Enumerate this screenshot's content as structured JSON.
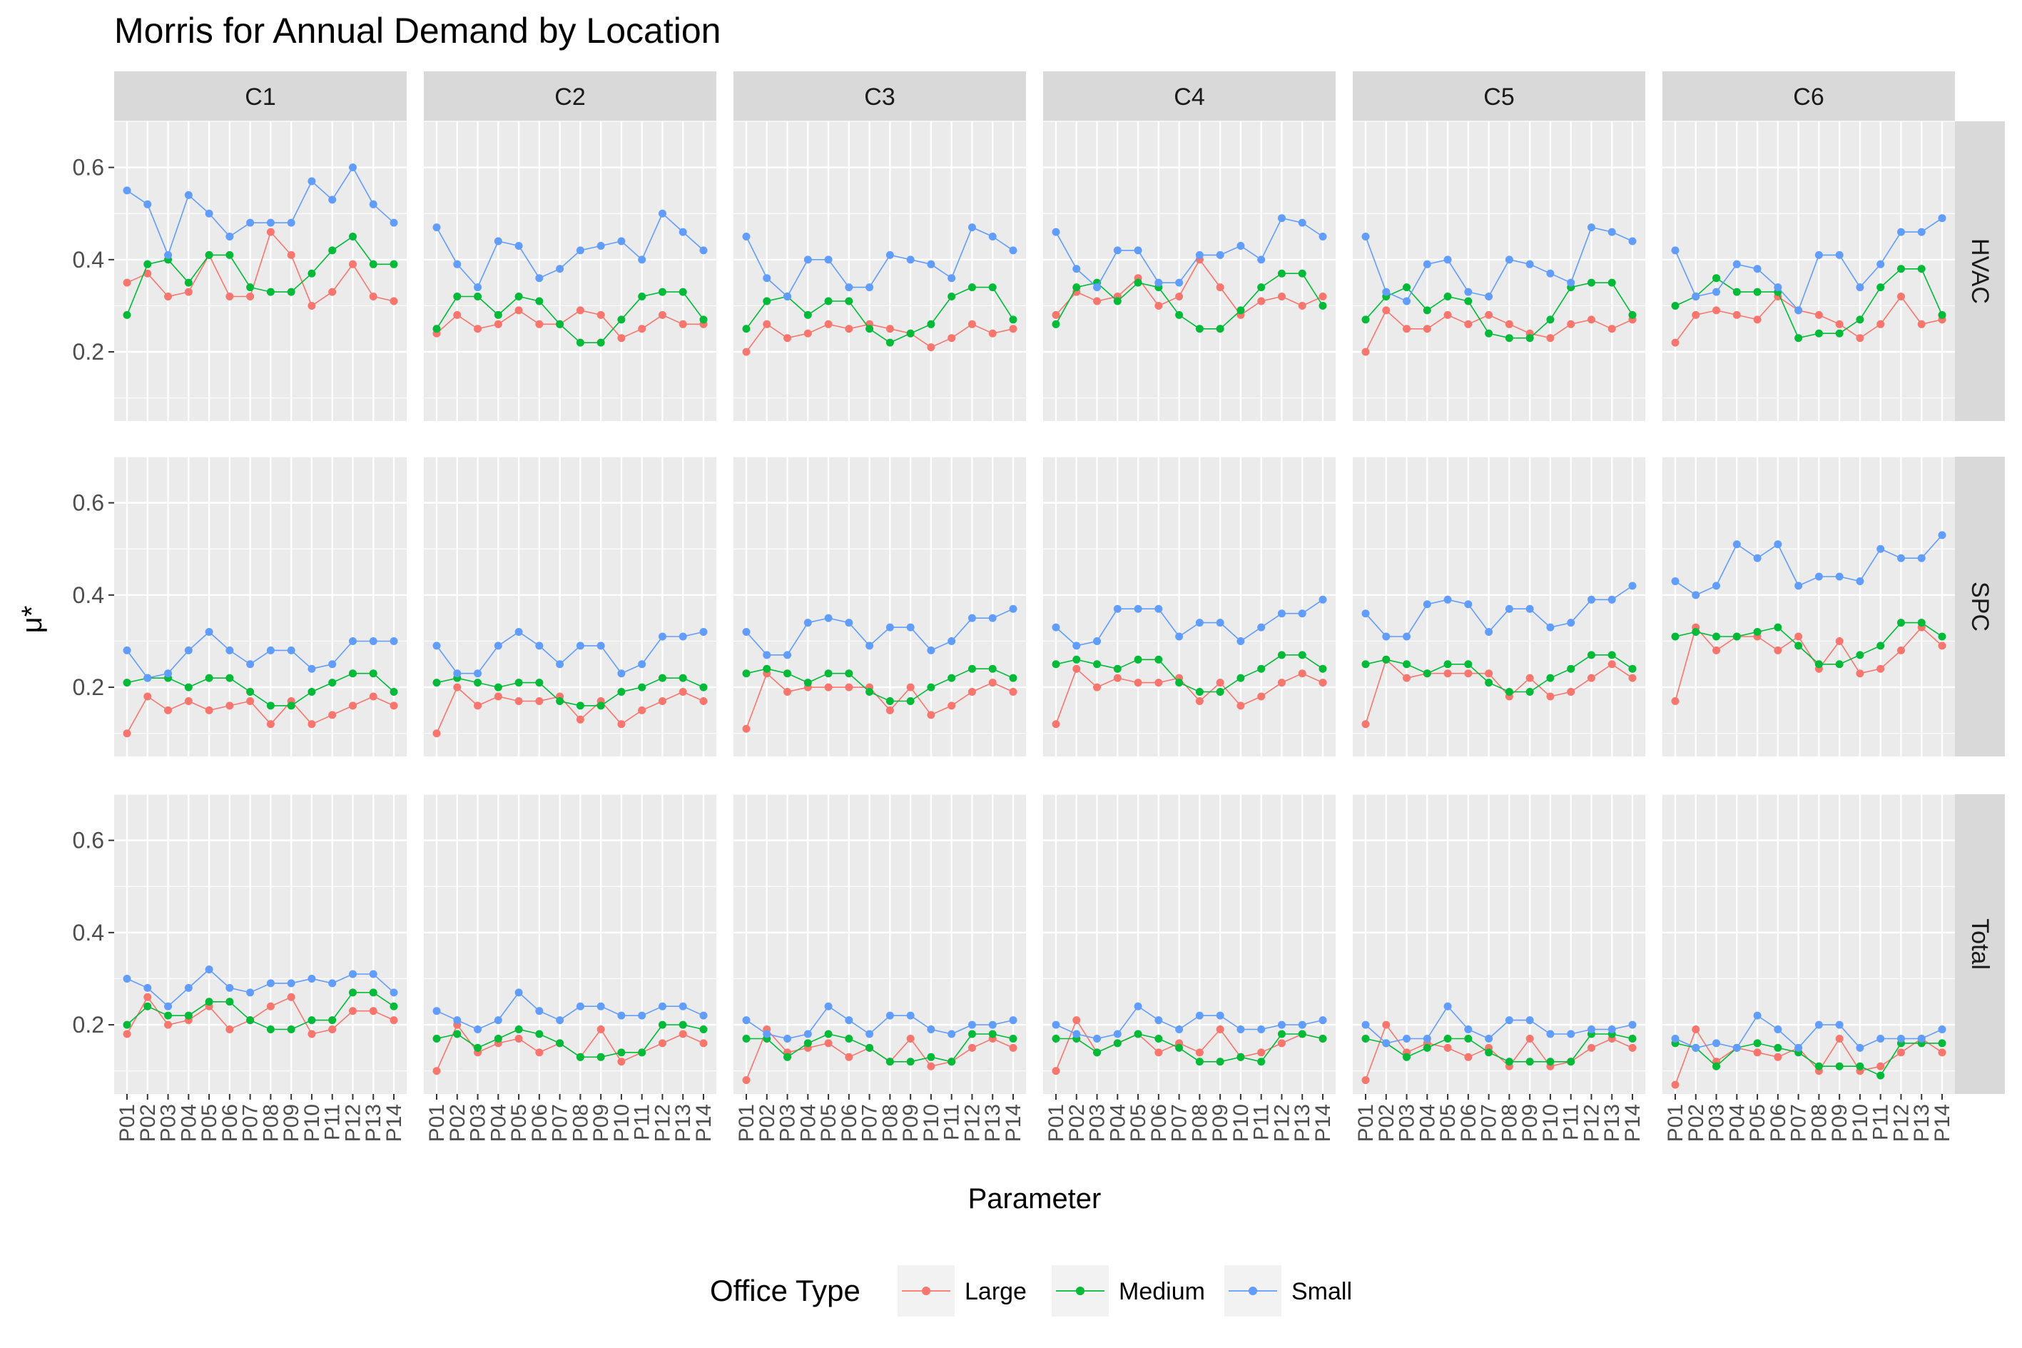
{
  "chart_data": {
    "type": "line",
    "title": "Morris for Annual Demand by Location",
    "xlabel": "Parameter",
    "ylabel": "μ*",
    "ylim": [
      0.05,
      0.7
    ],
    "yticks": [
      0.2,
      0.4,
      0.6
    ],
    "grid": true,
    "legend": {
      "title": "Office Type",
      "position": "bottom",
      "entries": [
        "Large",
        "Medium",
        "Small"
      ]
    },
    "series_colors": {
      "Large": "#F8766D",
      "Medium": "#00BA38",
      "Small": "#619CFF"
    },
    "categories": [
      "P01",
      "P02",
      "P03",
      "P04",
      "P05",
      "P06",
      "P07",
      "P08",
      "P09",
      "P10",
      "P11",
      "P12",
      "P13",
      "P14"
    ],
    "columns": [
      "C1",
      "C2",
      "C3",
      "C4",
      "C5",
      "C6"
    ],
    "rows": [
      "HVAC",
      "SPC",
      "Total"
    ],
    "panels": {
      "HVAC": {
        "C1": {
          "Large": [
            0.35,
            0.37,
            0.32,
            0.33,
            0.41,
            0.32,
            0.32,
            0.46,
            0.41,
            0.3,
            0.33,
            0.39,
            0.32,
            0.31
          ],
          "Medium": [
            0.28,
            0.39,
            0.4,
            0.35,
            0.41,
            0.41,
            0.34,
            0.33,
            0.33,
            0.37,
            0.42,
            0.45,
            0.39,
            0.39
          ],
          "Small": [
            0.55,
            0.52,
            0.41,
            0.54,
            0.5,
            0.45,
            0.48,
            0.48,
            0.48,
            0.57,
            0.53,
            0.6,
            0.52,
            0.48
          ]
        },
        "C2": {
          "Large": [
            0.24,
            0.28,
            0.25,
            0.26,
            0.29,
            0.26,
            0.26,
            0.29,
            0.28,
            0.23,
            0.25,
            0.28,
            0.26,
            0.26
          ],
          "Medium": [
            0.25,
            0.32,
            0.32,
            0.28,
            0.32,
            0.31,
            0.26,
            0.22,
            0.22,
            0.27,
            0.32,
            0.33,
            0.33,
            0.27
          ],
          "Small": [
            0.47,
            0.39,
            0.34,
            0.44,
            0.43,
            0.36,
            0.38,
            0.42,
            0.43,
            0.44,
            0.4,
            0.5,
            0.46,
            0.42
          ]
        },
        "C3": {
          "Large": [
            0.2,
            0.26,
            0.23,
            0.24,
            0.26,
            0.25,
            0.26,
            0.25,
            0.24,
            0.21,
            0.23,
            0.26,
            0.24,
            0.25
          ],
          "Medium": [
            0.25,
            0.31,
            0.32,
            0.28,
            0.31,
            0.31,
            0.25,
            0.22,
            0.24,
            0.26,
            0.32,
            0.34,
            0.34,
            0.27
          ],
          "Small": [
            0.45,
            0.36,
            0.32,
            0.4,
            0.4,
            0.34,
            0.34,
            0.41,
            0.4,
            0.39,
            0.36,
            0.47,
            0.45,
            0.42
          ]
        },
        "C4": {
          "Large": [
            0.28,
            0.33,
            0.31,
            0.32,
            0.36,
            0.3,
            0.32,
            0.4,
            0.34,
            0.28,
            0.31,
            0.32,
            0.3,
            0.32
          ],
          "Medium": [
            0.26,
            0.34,
            0.35,
            0.31,
            0.35,
            0.34,
            0.28,
            0.25,
            0.25,
            0.29,
            0.34,
            0.37,
            0.37,
            0.3
          ],
          "Small": [
            0.46,
            0.38,
            0.34,
            0.42,
            0.42,
            0.35,
            0.35,
            0.41,
            0.41,
            0.43,
            0.4,
            0.49,
            0.48,
            0.45
          ]
        },
        "C5": {
          "Large": [
            0.2,
            0.29,
            0.25,
            0.25,
            0.28,
            0.26,
            0.28,
            0.26,
            0.24,
            0.23,
            0.26,
            0.27,
            0.25,
            0.27
          ],
          "Medium": [
            0.27,
            0.32,
            0.34,
            0.29,
            0.32,
            0.31,
            0.24,
            0.23,
            0.23,
            0.27,
            0.34,
            0.35,
            0.35,
            0.28
          ],
          "Small": [
            0.45,
            0.33,
            0.31,
            0.39,
            0.4,
            0.33,
            0.32,
            0.4,
            0.39,
            0.37,
            0.35,
            0.47,
            0.46,
            0.44
          ]
        },
        "C6": {
          "Large": [
            0.22,
            0.28,
            0.29,
            0.28,
            0.27,
            0.32,
            0.29,
            0.28,
            0.26,
            0.23,
            0.26,
            0.32,
            0.26,
            0.27
          ],
          "Medium": [
            0.3,
            0.32,
            0.36,
            0.33,
            0.33,
            0.33,
            0.23,
            0.24,
            0.24,
            0.27,
            0.34,
            0.38,
            0.38,
            0.28
          ],
          "Small": [
            0.42,
            0.32,
            0.33,
            0.39,
            0.38,
            0.34,
            0.29,
            0.41,
            0.41,
            0.34,
            0.39,
            0.46,
            0.46,
            0.49
          ]
        }
      },
      "SPC": {
        "C1": {
          "Large": [
            0.1,
            0.18,
            0.15,
            0.17,
            0.15,
            0.16,
            0.17,
            0.12,
            0.17,
            0.12,
            0.14,
            0.16,
            0.18,
            0.16
          ],
          "Medium": [
            0.21,
            0.22,
            0.22,
            0.2,
            0.22,
            0.22,
            0.19,
            0.16,
            0.16,
            0.19,
            0.21,
            0.23,
            0.23,
            0.19
          ],
          "Small": [
            0.28,
            0.22,
            0.23,
            0.28,
            0.32,
            0.28,
            0.25,
            0.28,
            0.28,
            0.24,
            0.25,
            0.3,
            0.3,
            0.3
          ]
        },
        "C2": {
          "Large": [
            0.1,
            0.2,
            0.16,
            0.18,
            0.17,
            0.17,
            0.18,
            0.13,
            0.17,
            0.12,
            0.15,
            0.17,
            0.19,
            0.17
          ],
          "Medium": [
            0.21,
            0.22,
            0.21,
            0.2,
            0.21,
            0.21,
            0.17,
            0.16,
            0.16,
            0.19,
            0.2,
            0.22,
            0.22,
            0.2
          ],
          "Small": [
            0.29,
            0.23,
            0.23,
            0.29,
            0.32,
            0.29,
            0.25,
            0.29,
            0.29,
            0.23,
            0.25,
            0.31,
            0.31,
            0.32
          ]
        },
        "C3": {
          "Large": [
            0.11,
            0.23,
            0.19,
            0.2,
            0.2,
            0.2,
            0.2,
            0.15,
            0.2,
            0.14,
            0.16,
            0.19,
            0.21,
            0.19
          ],
          "Medium": [
            0.23,
            0.24,
            0.23,
            0.21,
            0.23,
            0.23,
            0.19,
            0.17,
            0.17,
            0.2,
            0.22,
            0.24,
            0.24,
            0.22
          ],
          "Small": [
            0.32,
            0.27,
            0.27,
            0.34,
            0.35,
            0.34,
            0.29,
            0.33,
            0.33,
            0.28,
            0.3,
            0.35,
            0.35,
            0.37
          ]
        },
        "C4": {
          "Large": [
            0.12,
            0.24,
            0.2,
            0.22,
            0.21,
            0.21,
            0.22,
            0.17,
            0.21,
            0.16,
            0.18,
            0.21,
            0.23,
            0.21
          ],
          "Medium": [
            0.25,
            0.26,
            0.25,
            0.24,
            0.26,
            0.26,
            0.21,
            0.19,
            0.19,
            0.22,
            0.24,
            0.27,
            0.27,
            0.24
          ],
          "Small": [
            0.33,
            0.29,
            0.3,
            0.37,
            0.37,
            0.37,
            0.31,
            0.34,
            0.34,
            0.3,
            0.33,
            0.36,
            0.36,
            0.39
          ]
        },
        "C5": {
          "Large": [
            0.12,
            0.26,
            0.22,
            0.23,
            0.23,
            0.23,
            0.23,
            0.18,
            0.22,
            0.18,
            0.19,
            0.22,
            0.25,
            0.22
          ],
          "Medium": [
            0.25,
            0.26,
            0.25,
            0.23,
            0.25,
            0.25,
            0.21,
            0.19,
            0.19,
            0.22,
            0.24,
            0.27,
            0.27,
            0.24
          ],
          "Small": [
            0.36,
            0.31,
            0.31,
            0.38,
            0.39,
            0.38,
            0.32,
            0.37,
            0.37,
            0.33,
            0.34,
            0.39,
            0.39,
            0.42
          ]
        },
        "C6": {
          "Large": [
            0.17,
            0.33,
            0.28,
            0.31,
            0.31,
            0.28,
            0.31,
            0.24,
            0.3,
            0.23,
            0.24,
            0.28,
            0.33,
            0.29
          ],
          "Medium": [
            0.31,
            0.32,
            0.31,
            0.31,
            0.32,
            0.33,
            0.29,
            0.25,
            0.25,
            0.27,
            0.29,
            0.34,
            0.34,
            0.31
          ],
          "Small": [
            0.43,
            0.4,
            0.42,
            0.51,
            0.48,
            0.51,
            0.42,
            0.44,
            0.44,
            0.43,
            0.5,
            0.48,
            0.48,
            0.53
          ]
        }
      },
      "Total": {
        "C1": {
          "Large": [
            0.18,
            0.26,
            0.2,
            0.21,
            0.24,
            0.19,
            0.21,
            0.24,
            0.26,
            0.18,
            0.19,
            0.23,
            0.23,
            0.21
          ],
          "Medium": [
            0.2,
            0.24,
            0.22,
            0.22,
            0.25,
            0.25,
            0.21,
            0.19,
            0.19,
            0.21,
            0.21,
            0.27,
            0.27,
            0.24
          ],
          "Small": [
            0.3,
            0.28,
            0.24,
            0.28,
            0.32,
            0.28,
            0.27,
            0.29,
            0.29,
            0.3,
            0.29,
            0.31,
            0.31,
            0.27
          ]
        },
        "C2": {
          "Large": [
            0.1,
            0.2,
            0.14,
            0.16,
            0.17,
            0.14,
            0.16,
            0.13,
            0.19,
            0.12,
            0.14,
            0.16,
            0.18,
            0.16
          ],
          "Medium": [
            0.17,
            0.18,
            0.15,
            0.17,
            0.19,
            0.18,
            0.16,
            0.13,
            0.13,
            0.14,
            0.14,
            0.2,
            0.2,
            0.19
          ],
          "Small": [
            0.23,
            0.21,
            0.19,
            0.21,
            0.27,
            0.23,
            0.21,
            0.24,
            0.24,
            0.22,
            0.22,
            0.24,
            0.24,
            0.22
          ]
        },
        "C3": {
          "Large": [
            0.08,
            0.19,
            0.14,
            0.15,
            0.16,
            0.13,
            0.15,
            0.12,
            0.17,
            0.11,
            0.12,
            0.15,
            0.17,
            0.15
          ],
          "Medium": [
            0.17,
            0.17,
            0.13,
            0.16,
            0.18,
            0.17,
            0.15,
            0.12,
            0.12,
            0.13,
            0.12,
            0.18,
            0.18,
            0.17
          ],
          "Small": [
            0.21,
            0.18,
            0.17,
            0.18,
            0.24,
            0.21,
            0.18,
            0.22,
            0.22,
            0.19,
            0.18,
            0.2,
            0.2,
            0.21
          ]
        },
        "C4": {
          "Large": [
            0.1,
            0.21,
            0.14,
            0.16,
            0.18,
            0.14,
            0.16,
            0.14,
            0.19,
            0.13,
            0.14,
            0.16,
            0.18,
            0.17
          ],
          "Medium": [
            0.17,
            0.17,
            0.14,
            0.16,
            0.18,
            0.17,
            0.15,
            0.12,
            0.12,
            0.13,
            0.12,
            0.18,
            0.18,
            0.17
          ],
          "Small": [
            0.2,
            0.18,
            0.17,
            0.18,
            0.24,
            0.21,
            0.19,
            0.22,
            0.22,
            0.19,
            0.19,
            0.2,
            0.2,
            0.21
          ]
        },
        "C5": {
          "Large": [
            0.08,
            0.2,
            0.14,
            0.16,
            0.15,
            0.13,
            0.15,
            0.11,
            0.17,
            0.11,
            0.12,
            0.15,
            0.17,
            0.15
          ],
          "Medium": [
            0.17,
            0.16,
            0.13,
            0.15,
            0.17,
            0.17,
            0.14,
            0.12,
            0.12,
            0.12,
            0.12,
            0.18,
            0.18,
            0.17
          ],
          "Small": [
            0.2,
            0.16,
            0.17,
            0.17,
            0.24,
            0.19,
            0.17,
            0.21,
            0.21,
            0.18,
            0.18,
            0.19,
            0.19,
            0.2
          ]
        },
        "C6": {
          "Large": [
            0.07,
            0.19,
            0.12,
            0.15,
            0.14,
            0.13,
            0.15,
            0.1,
            0.17,
            0.1,
            0.11,
            0.14,
            0.17,
            0.14
          ],
          "Medium": [
            0.16,
            0.15,
            0.11,
            0.15,
            0.16,
            0.15,
            0.14,
            0.11,
            0.11,
            0.11,
            0.09,
            0.16,
            0.16,
            0.16
          ],
          "Small": [
            0.17,
            0.15,
            0.16,
            0.15,
            0.22,
            0.19,
            0.15,
            0.2,
            0.2,
            0.15,
            0.17,
            0.17,
            0.17,
            0.19
          ]
        }
      }
    }
  }
}
